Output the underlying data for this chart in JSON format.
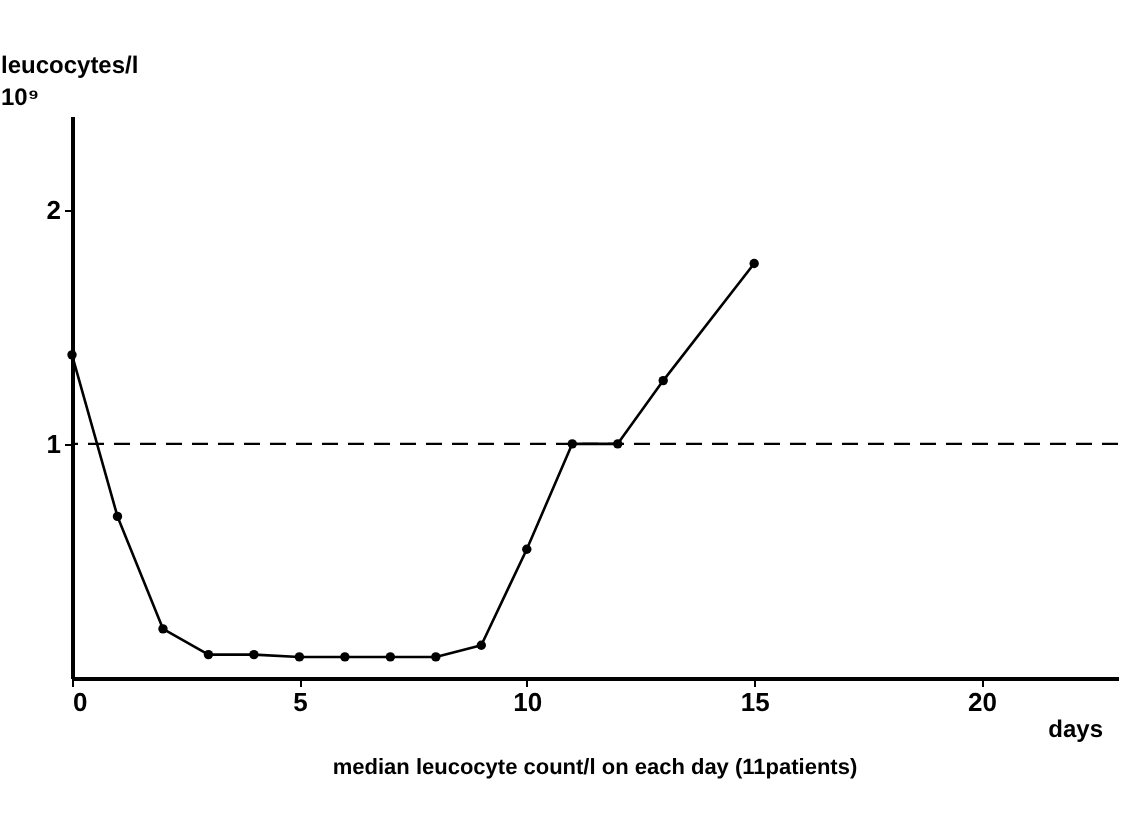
{
  "chart_data": {
    "type": "line",
    "title": "median leucocyte count/l on each day (11patients)",
    "xlabel": "days",
    "ylabel": "leucocytes/l\n10⁹",
    "x": [
      0,
      1,
      2,
      3,
      4,
      5,
      6,
      7,
      8,
      9,
      10,
      11,
      12,
      13,
      15
    ],
    "series": [
      {
        "color": "#000000",
        "values": [
          1.38,
          0.69,
          0.21,
          0.1,
          0.1,
          0.09,
          0.09,
          0.09,
          0.09,
          0.14,
          0.55,
          1.0,
          1.0,
          1.27,
          1.77
        ]
      }
    ],
    "xlim": [
      0,
      23
    ],
    "xticks": [
      0,
      5,
      10,
      15,
      20
    ],
    "ylim": [
      0,
      2.4
    ],
    "yticks": [
      1,
      2
    ],
    "ref_lines": [
      {
        "axis": "y",
        "value": 1,
        "line_style": "dashed",
        "color": "#000000"
      }
    ],
    "marker": "circle",
    "line_style": "solid",
    "grid": false
  }
}
